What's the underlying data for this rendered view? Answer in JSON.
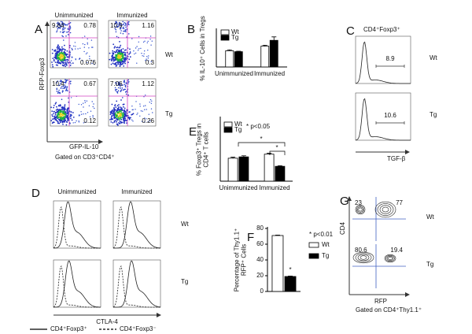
{
  "panel_labels": [
    "A",
    "B",
    "C",
    "D",
    "E",
    "F",
    "G"
  ],
  "panel_a": {
    "column_titles": [
      "Unimmunized",
      "Immunized"
    ],
    "row_labels": [
      "Wt",
      "Tg"
    ],
    "quadrant_values": [
      [
        "9.64",
        "0.78",
        "0.076"
      ],
      [
        "10.9",
        "1.16",
        "0.3"
      ],
      [
        "10.4",
        "0.67",
        "0.12"
      ],
      [
        "7.06",
        "1.12",
        "0.26"
      ]
    ],
    "y_label": "RFP-Foxp3",
    "x_label": "GFP-IL-10",
    "gate": "Gated on CD3⁺CD4⁺"
  },
  "panel_c": {
    "title": "CD4⁺Foxp3⁺",
    "row_labels": [
      "Wt",
      "Tg"
    ],
    "gate_values": [
      "8.9",
      "10.6"
    ],
    "x_label": "TGF-β"
  },
  "panel_d": {
    "column_titles": [
      "Unimmunized",
      "Immunized"
    ],
    "row_labels": [
      "Wt",
      "Tg"
    ],
    "x_label": "CTLA-4",
    "legend": [
      "CD4⁺Foxp3⁺",
      "CD4⁺Foxp3⁻"
    ]
  },
  "panel_g": {
    "quadrant_values": [
      [
        "23",
        "77"
      ],
      [
        "80.6",
        "19.4"
      ]
    ],
    "row_labels": [
      "Wt",
      "Tg"
    ],
    "y_label": "CD4",
    "x_label": "RFP",
    "gate": "Gated on CD4⁺Thy1.1⁺"
  },
  "chart_data": [
    {
      "type": "bar",
      "y_label": [
        "% IL-10⁺ Cells in Tregs"
      ],
      "categories": [
        "Unimmunized",
        "Immunized"
      ],
      "series": [
        {
          "name": "Wt",
          "color": "#ffffff",
          "values": [
            7,
            9
          ],
          "errors": [
            0.4,
            0.4
          ]
        },
        {
          "name": "Tg",
          "color": "#000000",
          "values": [
            6.6,
            11.5
          ],
          "errors": [
            0.2,
            1.5
          ]
        }
      ],
      "ylim": [
        0,
        16
      ]
    },
    {
      "type": "bar",
      "y_label": [
        "% Foxp3⁺ Tregs in",
        "CD4⁺ T cells"
      ],
      "categories": [
        "Unimmunized",
        "Immunized"
      ],
      "note": "* p<0.05",
      "significance_labels": [
        "*",
        "*"
      ],
      "series": [
        {
          "name": "Wt",
          "color": "#ffffff",
          "values": [
            5.1,
            6
          ],
          "errors": [
            0.25,
            0.2
          ]
        },
        {
          "name": "Tg",
          "color": "#000000",
          "values": [
            5.4,
            3.3
          ],
          "errors": [
            0.25,
            0.15
          ]
        }
      ],
      "ylim": [
        0,
        14
      ]
    },
    {
      "type": "bar",
      "y_label": [
        "Percentage of Thy1.1⁺",
        "RFP⁺ Cells"
      ],
      "categories": [
        null
      ],
      "note": "* p<0.01",
      "significance_labels": [
        "*"
      ],
      "series": [
        {
          "name": "Wt",
          "color": "#ffffff",
          "values": [
            71
          ],
          "errors": [
            0.6
          ]
        },
        {
          "name": "Tg",
          "color": "#000000",
          "values": [
            19
          ],
          "errors": [
            0.6
          ]
        }
      ],
      "ylim": [
        0,
        80
      ],
      "yticks": [
        0,
        20,
        40,
        60,
        80
      ]
    }
  ]
}
